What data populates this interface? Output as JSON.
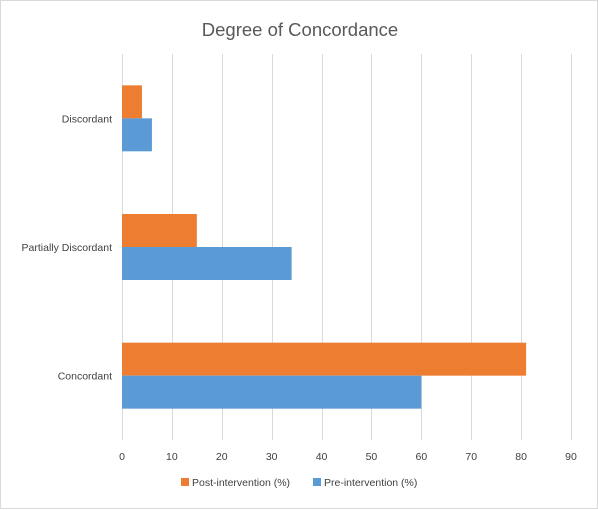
{
  "chart_data": {
    "type": "bar",
    "orientation": "horizontal",
    "title": "Degree of Concordance",
    "categories": [
      "Concordant",
      "Partially Discordant",
      "Discordant"
    ],
    "series": [
      {
        "name": "Pre-intervention (%)",
        "color": "#5b9bd5",
        "values": [
          60,
          34,
          6
        ]
      },
      {
        "name": "Post-intervention (%)",
        "color": "#ed7d31",
        "values": [
          81,
          15,
          4
        ]
      }
    ],
    "xlim": [
      0,
      90
    ],
    "xticks": [
      "0",
      "10",
      "20",
      "30",
      "40",
      "50",
      "60",
      "70",
      "80",
      "90"
    ],
    "grid": true,
    "legend": {
      "position": "bottom",
      "order": [
        "Post-intervention (%)",
        "Pre-intervention (%)"
      ]
    }
  }
}
